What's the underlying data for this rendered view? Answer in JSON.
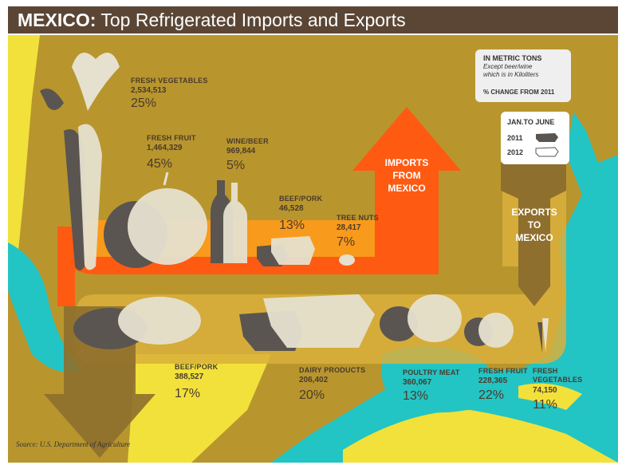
{
  "title": {
    "bold": "MEXICO:",
    "rest": " Top Refrigerated Imports and Exports"
  },
  "legend": {
    "unit_line": "IN METRIC TONS",
    "unit_note_1": "Except beer/wine",
    "unit_note_2": "which is in Kiloliters",
    "change_note": "% CHANGE FROM 2011",
    "period": "JAN.TO JUNE",
    "year_1": "2011",
    "year_2": "2012"
  },
  "arrows": {
    "imports": [
      "IMPORTS",
      "FROM",
      "MEXICO"
    ],
    "exports": [
      "EXPORTS",
      "TO",
      "MEXICO"
    ]
  },
  "source": "Source: U.S. Department of Agriculture",
  "colors": {
    "title_bg": "#5b4635",
    "sea": "#23c4c4",
    "land": "#b8962d",
    "land_light": "#f2e13a",
    "imports_arrow": "#ff5a12",
    "imports_band": "#ff9a1a",
    "exports_arrow": "#8e6f2e",
    "exports_band": "#d9b03c",
    "icon_2011": "#5a5550",
    "icon_2012": "#e6e0cf"
  },
  "chart_data": {
    "type": "table",
    "unit": "IN METRIC TONS",
    "unit_note": "Except beer/wine which is in Kiloliters",
    "change_label": "% CHANGE FROM 2011",
    "period": "JAN.TO JUNE",
    "imports": [
      {
        "category": "FRESH VEGETABLES",
        "value": "2,534,513",
        "change": "25%"
      },
      {
        "category": "FRESH FRUIT",
        "value": "1,464,329",
        "change": "45%"
      },
      {
        "category": "WINE/BEER",
        "value": "969,844",
        "change": "5%"
      },
      {
        "category": "BEEF/PORK",
        "value": "46,528",
        "change": "13%"
      },
      {
        "category": "TREE NUTS",
        "value": "28,417",
        "change": "7%"
      }
    ],
    "exports": [
      {
        "category": "BEEF/PORK",
        "value": "388,527",
        "change": "17%"
      },
      {
        "category": "DAIRY PRODUCTS",
        "value": "206,402",
        "change": "20%"
      },
      {
        "category": "POULTRY MEAT",
        "value": "360,067",
        "change": "13%"
      },
      {
        "category": "FRESH FRUIT",
        "value": "228,365",
        "change": "22%"
      },
      {
        "category": "FRESH VEGETABLES",
        "value": "74,150",
        "change": "11%"
      }
    ]
  }
}
